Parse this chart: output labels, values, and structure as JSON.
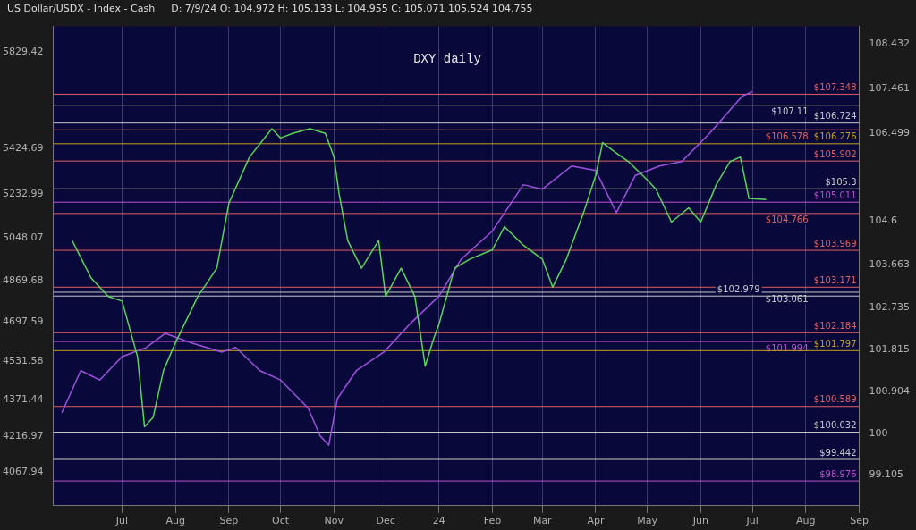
{
  "chart_data": {
    "type": "line",
    "title": "DXY daily",
    "subtitle": "US Dollar/USDX - Index - Cash",
    "annotations": [
      "D: 7/9/24  O: 104.972  H: 105.133  L: 104.955  C: 105.071",
      "105.524",
      "104.755"
    ],
    "xlim": [
      "2023-05-22",
      "2024-09-01"
    ],
    "xticks": [
      {
        "value": "2023-07-01",
        "label": "Jul"
      },
      {
        "value": "2023-08-01",
        "label": "Aug"
      },
      {
        "value": "2023-09-01",
        "label": "Sep"
      },
      {
        "value": "2023-10-01",
        "label": "Oct"
      },
      {
        "value": "2023-11-01",
        "label": "Nov"
      },
      {
        "value": "2023-12-01",
        "label": "Dec"
      },
      {
        "value": "2024-01-01",
        "label": "24"
      },
      {
        "value": "2024-02-01",
        "label": "Feb"
      },
      {
        "value": "2024-03-01",
        "label": "Mar"
      },
      {
        "value": "2024-04-01",
        "label": "Apr"
      },
      {
        "value": "2024-05-01",
        "label": "May"
      },
      {
        "value": "2024-06-01",
        "label": "Jun"
      },
      {
        "value": "2024-07-01",
        "label": "Jul"
      },
      {
        "value": "2024-08-01",
        "label": "Aug"
      },
      {
        "value": "2024-09-01",
        "label": "Sep"
      }
    ],
    "ylim": [
      98.44,
      108.815
    ],
    "yticks": [
      108.432,
      107.461,
      106.499,
      104.6,
      103.663,
      102.735,
      101.815,
      100.904,
      100,
      99.105
    ],
    "y2lim": [
      3927.6,
      5934.6
    ],
    "y2ticks": [
      4067.94,
      4216.97,
      4371.44,
      4531.58,
      4697.59,
      4869.68,
      5048.07,
      5232.99,
      5424.69,
      5829.42
    ],
    "grid": "x",
    "legend": false,
    "series": [
      {
        "color": "#5ad45a",
        "x": [
          "2023-06-02",
          "2023-06-13",
          "2023-06-23",
          "2023-07-01",
          "2023-07-10",
          "2023-07-14",
          "2023-07-19",
          "2023-07-25",
          "2023-08-01",
          "2023-08-14",
          "2023-08-25",
          "2023-09-01",
          "2023-09-13",
          "2023-09-26",
          "2023-10-01",
          "2023-10-08",
          "2023-10-18",
          "2023-10-27",
          "2023-11-01",
          "2023-11-04",
          "2023-11-09",
          "2023-11-17",
          "2023-11-27",
          "2023-12-01",
          "2023-12-10",
          "2023-12-18",
          "2023-12-24",
          "2023-12-29",
          "2024-01-01",
          "2024-01-10",
          "2024-01-19",
          "2024-02-01",
          "2024-02-08",
          "2024-02-19",
          "2024-03-01",
          "2024-03-07",
          "2024-03-15",
          "2024-03-25",
          "2024-04-01",
          "2024-04-05",
          "2024-04-12",
          "2024-04-20",
          "2024-05-01",
          "2024-05-06",
          "2024-05-15",
          "2024-05-25",
          "2024-06-01",
          "2024-06-10",
          "2024-06-18",
          "2024-06-24",
          "2024-06-29",
          "2024-07-09"
        ],
        "values": [
          104.18,
          103.37,
          102.97,
          102.87,
          101.66,
          100.15,
          100.35,
          101.36,
          101.97,
          102.97,
          103.58,
          104.99,
          105.99,
          106.6,
          106.4,
          106.5,
          106.6,
          106.5,
          105.99,
          105.19,
          104.18,
          103.58,
          104.18,
          102.97,
          103.58,
          102.97,
          101.46,
          102.07,
          102.37,
          103.58,
          103.78,
          103.98,
          104.48,
          104.08,
          103.78,
          103.17,
          103.78,
          104.79,
          105.59,
          106.3,
          106.1,
          105.89,
          105.49,
          105.29,
          104.58,
          104.89,
          104.58,
          105.39,
          105.89,
          105.99,
          105.09,
          105.07
        ]
      },
      {
        "axis": "y2",
        "color": "#a050e0",
        "x": [
          "2023-05-27",
          "2023-06-07",
          "2023-06-18",
          "2023-07-01",
          "2023-07-15",
          "2023-07-26",
          "2023-08-10",
          "2023-08-19",
          "2023-08-28",
          "2023-09-05",
          "2023-09-19",
          "2023-10-01",
          "2023-10-17",
          "2023-10-24",
          "2023-10-29",
          "2023-11-03",
          "2023-11-14",
          "2023-11-30",
          "2023-12-15",
          "2024-01-01",
          "2024-01-14",
          "2024-02-01",
          "2024-02-19",
          "2024-03-01",
          "2024-03-18",
          "2024-04-01",
          "2024-04-13",
          "2024-04-24",
          "2024-05-08",
          "2024-05-21",
          "2024-06-06",
          "2024-06-25",
          "2024-07-01"
        ],
        "values": [
          4317,
          4493,
          4454,
          4552,
          4590,
          4649,
          4610,
          4590,
          4571,
          4590,
          4493,
          4454,
          4337,
          4220,
          4181,
          4376,
          4493,
          4571,
          4688,
          4805,
          4961,
          5078,
          5272,
          5253,
          5350,
          5331,
          5155,
          5311,
          5350,
          5369,
          5486,
          5642,
          5662
        ]
      }
    ],
    "ref_lines": [
      {
        "axis": "y",
        "value": 107.348,
        "label": "$107.348",
        "color": "#e06060"
      },
      {
        "axis": "y",
        "value": 107.11,
        "label": "$107.11",
        "color": "#c8c8c8"
      },
      {
        "axis": "y",
        "value": 106.724,
        "label": "$106.724",
        "color": "#c8c8c8"
      },
      {
        "axis": "y",
        "value": 106.578,
        "label": "$106.578",
        "color": "#e06060"
      },
      {
        "axis": "y",
        "value": 106.276,
        "label": "$106.276",
        "color": "#c8a020"
      },
      {
        "axis": "y",
        "value": 105.902,
        "label": "$105.902",
        "color": "#e06060"
      },
      {
        "axis": "y",
        "value": 105.3,
        "label": "$105.3",
        "color": "#c8c8c8"
      },
      {
        "axis": "y",
        "value": 105.011,
        "label": "$105.011",
        "color": "#c050d0"
      },
      {
        "axis": "y",
        "value": 104.766,
        "label": "$104.766",
        "color": "#e06060"
      },
      {
        "axis": "y",
        "value": 103.969,
        "label": "$103.969",
        "color": "#e06060"
      },
      {
        "axis": "y",
        "value": 103.171,
        "label": "$103.171",
        "color": "#e06060"
      },
      {
        "axis": "y",
        "value": 103.061,
        "label": "$103.061",
        "color": "#c8c8c8"
      },
      {
        "axis": "y",
        "value": 102.979,
        "label": "$102.979",
        "color": "#c8c8c8"
      },
      {
        "axis": "y",
        "value": 102.184,
        "label": "$102.184",
        "color": "#e06060"
      },
      {
        "axis": "y",
        "value": 101.994,
        "label": "$101.994",
        "color": "#c050d0"
      },
      {
        "axis": "y",
        "value": 101.797,
        "label": "$101.797",
        "color": "#c8a020"
      },
      {
        "axis": "y",
        "value": 100.589,
        "label": "$100.589",
        "color": "#e06060"
      },
      {
        "axis": "y",
        "value": 100.032,
        "label": "$100.032",
        "color": "#c8c8c8"
      },
      {
        "axis": "y",
        "value": 99.442,
        "label": "$99.442",
        "color": "#c8c8c8"
      },
      {
        "axis": "y",
        "value": 98.976,
        "label": "$98.976",
        "color": "#c050d0"
      }
    ]
  }
}
